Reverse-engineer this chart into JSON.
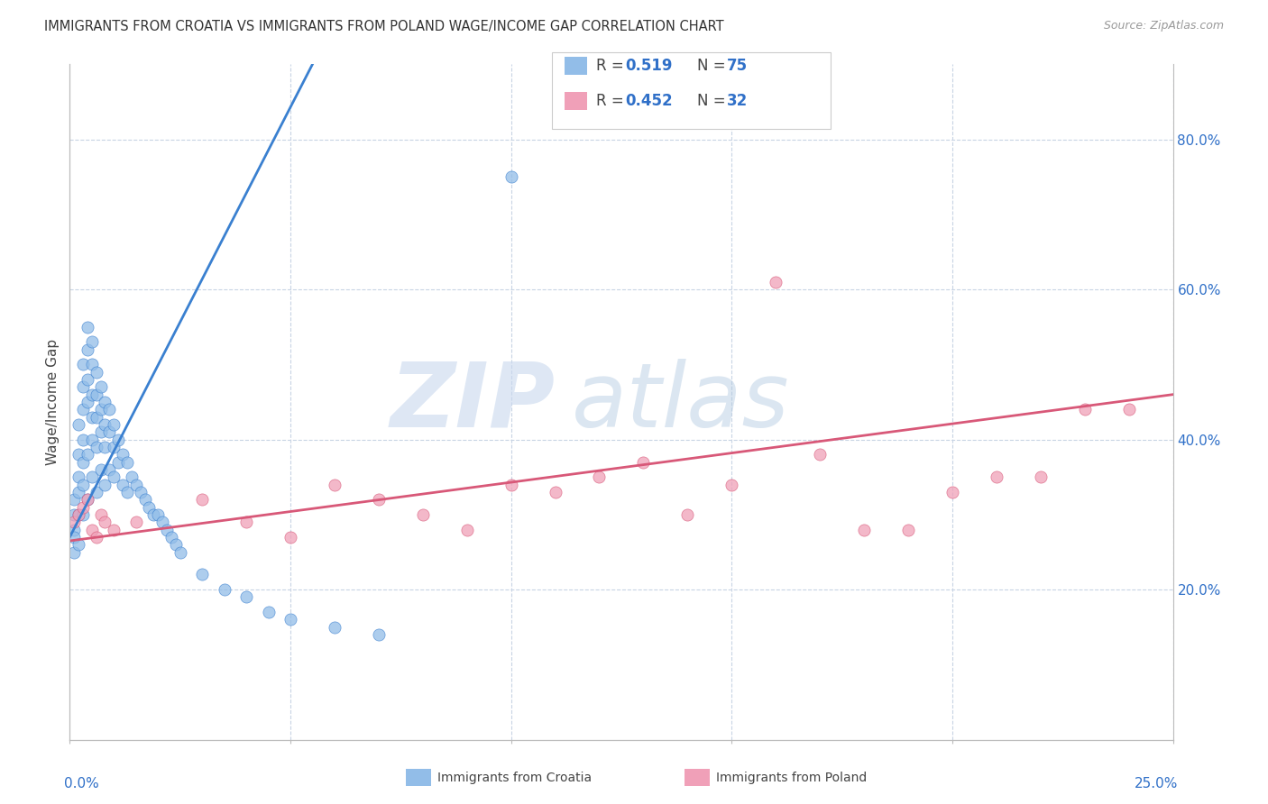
{
  "title": "IMMIGRANTS FROM CROATIA VS IMMIGRANTS FROM POLAND WAGE/INCOME GAP CORRELATION CHART",
  "source": "Source: ZipAtlas.com",
  "ylabel": "Wage/Income Gap",
  "legend_croatia": "Immigrants from Croatia",
  "legend_poland": "Immigrants from Poland",
  "r_croatia": 0.519,
  "n_croatia": 75,
  "r_poland": 0.452,
  "n_poland": 32,
  "color_croatia": "#92bde8",
  "color_poland": "#f0a0b8",
  "color_line_croatia": "#3a80d0",
  "color_line_poland": "#d85878",
  "color_blue_text": "#3070c8",
  "color_dark_text": "#444444",
  "color_grey_text": "#999999",
  "background_color": "#ffffff",
  "grid_color": "#c8d4e4",
  "croatia_x": [
    0.001,
    0.001,
    0.001,
    0.001,
    0.001,
    0.002,
    0.002,
    0.002,
    0.002,
    0.002,
    0.002,
    0.003,
    0.003,
    0.003,
    0.003,
    0.003,
    0.003,
    0.003,
    0.004,
    0.004,
    0.004,
    0.004,
    0.004,
    0.004,
    0.005,
    0.005,
    0.005,
    0.005,
    0.005,
    0.005,
    0.006,
    0.006,
    0.006,
    0.006,
    0.006,
    0.007,
    0.007,
    0.007,
    0.007,
    0.008,
    0.008,
    0.008,
    0.008,
    0.009,
    0.009,
    0.009,
    0.01,
    0.01,
    0.01,
    0.011,
    0.011,
    0.012,
    0.012,
    0.013,
    0.013,
    0.014,
    0.015,
    0.016,
    0.017,
    0.018,
    0.019,
    0.02,
    0.021,
    0.022,
    0.023,
    0.024,
    0.025,
    0.03,
    0.035,
    0.04,
    0.045,
    0.05,
    0.06,
    0.07,
    0.1
  ],
  "croatia_y": [
    0.32,
    0.3,
    0.28,
    0.27,
    0.25,
    0.42,
    0.38,
    0.35,
    0.33,
    0.3,
    0.26,
    0.5,
    0.47,
    0.44,
    0.4,
    0.37,
    0.34,
    0.3,
    0.55,
    0.52,
    0.48,
    0.45,
    0.38,
    0.32,
    0.53,
    0.5,
    0.46,
    0.43,
    0.4,
    0.35,
    0.49,
    0.46,
    0.43,
    0.39,
    0.33,
    0.47,
    0.44,
    0.41,
    0.36,
    0.45,
    0.42,
    0.39,
    0.34,
    0.44,
    0.41,
    0.36,
    0.42,
    0.39,
    0.35,
    0.4,
    0.37,
    0.38,
    0.34,
    0.37,
    0.33,
    0.35,
    0.34,
    0.33,
    0.32,
    0.31,
    0.3,
    0.3,
    0.29,
    0.28,
    0.27,
    0.26,
    0.25,
    0.22,
    0.2,
    0.19,
    0.17,
    0.16,
    0.15,
    0.14,
    0.75
  ],
  "poland_x": [
    0.001,
    0.002,
    0.003,
    0.004,
    0.005,
    0.006,
    0.007,
    0.008,
    0.01,
    0.015,
    0.03,
    0.04,
    0.05,
    0.06,
    0.07,
    0.08,
    0.09,
    0.1,
    0.11,
    0.12,
    0.13,
    0.14,
    0.15,
    0.16,
    0.17,
    0.18,
    0.19,
    0.2,
    0.21,
    0.22,
    0.23,
    0.24
  ],
  "poland_y": [
    0.29,
    0.3,
    0.31,
    0.32,
    0.28,
    0.27,
    0.3,
    0.29,
    0.28,
    0.29,
    0.32,
    0.29,
    0.27,
    0.34,
    0.32,
    0.3,
    0.28,
    0.34,
    0.33,
    0.35,
    0.37,
    0.3,
    0.34,
    0.61,
    0.38,
    0.28,
    0.28,
    0.33,
    0.35,
    0.35,
    0.44,
    0.44
  ],
  "line_croatia_x0": 0.0,
  "line_croatia_x1": 0.055,
  "line_croatia_y0": 0.27,
  "line_croatia_y1": 0.9,
  "line_poland_x0": 0.0,
  "line_poland_x1": 0.25,
  "line_poland_y0": 0.265,
  "line_poland_y1": 0.46,
  "xlim": [
    0.0,
    0.25
  ],
  "ylim": [
    0.0,
    0.9
  ],
  "ytick_vals": [
    0.2,
    0.4,
    0.6,
    0.8
  ],
  "ytick_labels": [
    "20.0%",
    "40.0%",
    "60.0%",
    "80.0%"
  ]
}
